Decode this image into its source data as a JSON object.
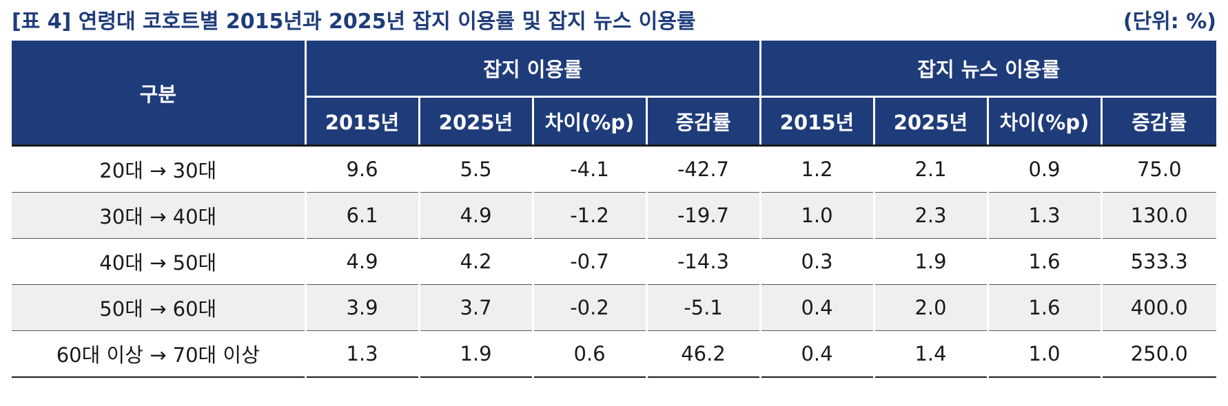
{
  "title": "[표 4] 연령대 코호트별 2015년과 2025년 잡지 이용률 및 잡지 뉴스 이용률",
  "unit": "(단위: %)",
  "table": {
    "label_header": "구분",
    "groups": [
      {
        "label": "잡지 이용률",
        "subheaders": [
          "2015년",
          "2025년",
          "차이(%p)",
          "증감률"
        ]
      },
      {
        "label": "잡지 뉴스 이용률",
        "subheaders": [
          "2015년",
          "2025년",
          "차이(%p)",
          "증감률"
        ]
      }
    ],
    "rows": [
      {
        "label": "20대 → 30대",
        "values": [
          "9.6",
          "5.5",
          "-4.1",
          "-42.7",
          "1.2",
          "2.1",
          "0.9",
          "75.0"
        ]
      },
      {
        "label": "30대 → 40대",
        "values": [
          "6.1",
          "4.9",
          "-1.2",
          "-19.7",
          "1.0",
          "2.3",
          "1.3",
          "130.0"
        ]
      },
      {
        "label": "40대 → 50대",
        "values": [
          "4.9",
          "4.2",
          "-0.7",
          "-14.3",
          "0.3",
          "1.9",
          "1.6",
          "533.3"
        ]
      },
      {
        "label": "50대 → 60대",
        "values": [
          "3.9",
          "3.7",
          "-0.2",
          "-5.1",
          "0.4",
          "2.0",
          "1.6",
          "400.0"
        ]
      },
      {
        "label": "60대 이상 → 70대 이상",
        "values": [
          "1.3",
          "1.9",
          "0.6",
          "46.2",
          "0.4",
          "1.4",
          "1.0",
          "250.0"
        ]
      }
    ]
  },
  "colors": {
    "header_bg": "#1f3c7a",
    "header_text": "#ffffff",
    "shade_row": "#efefef",
    "title_text": "#1f3c7a"
  }
}
